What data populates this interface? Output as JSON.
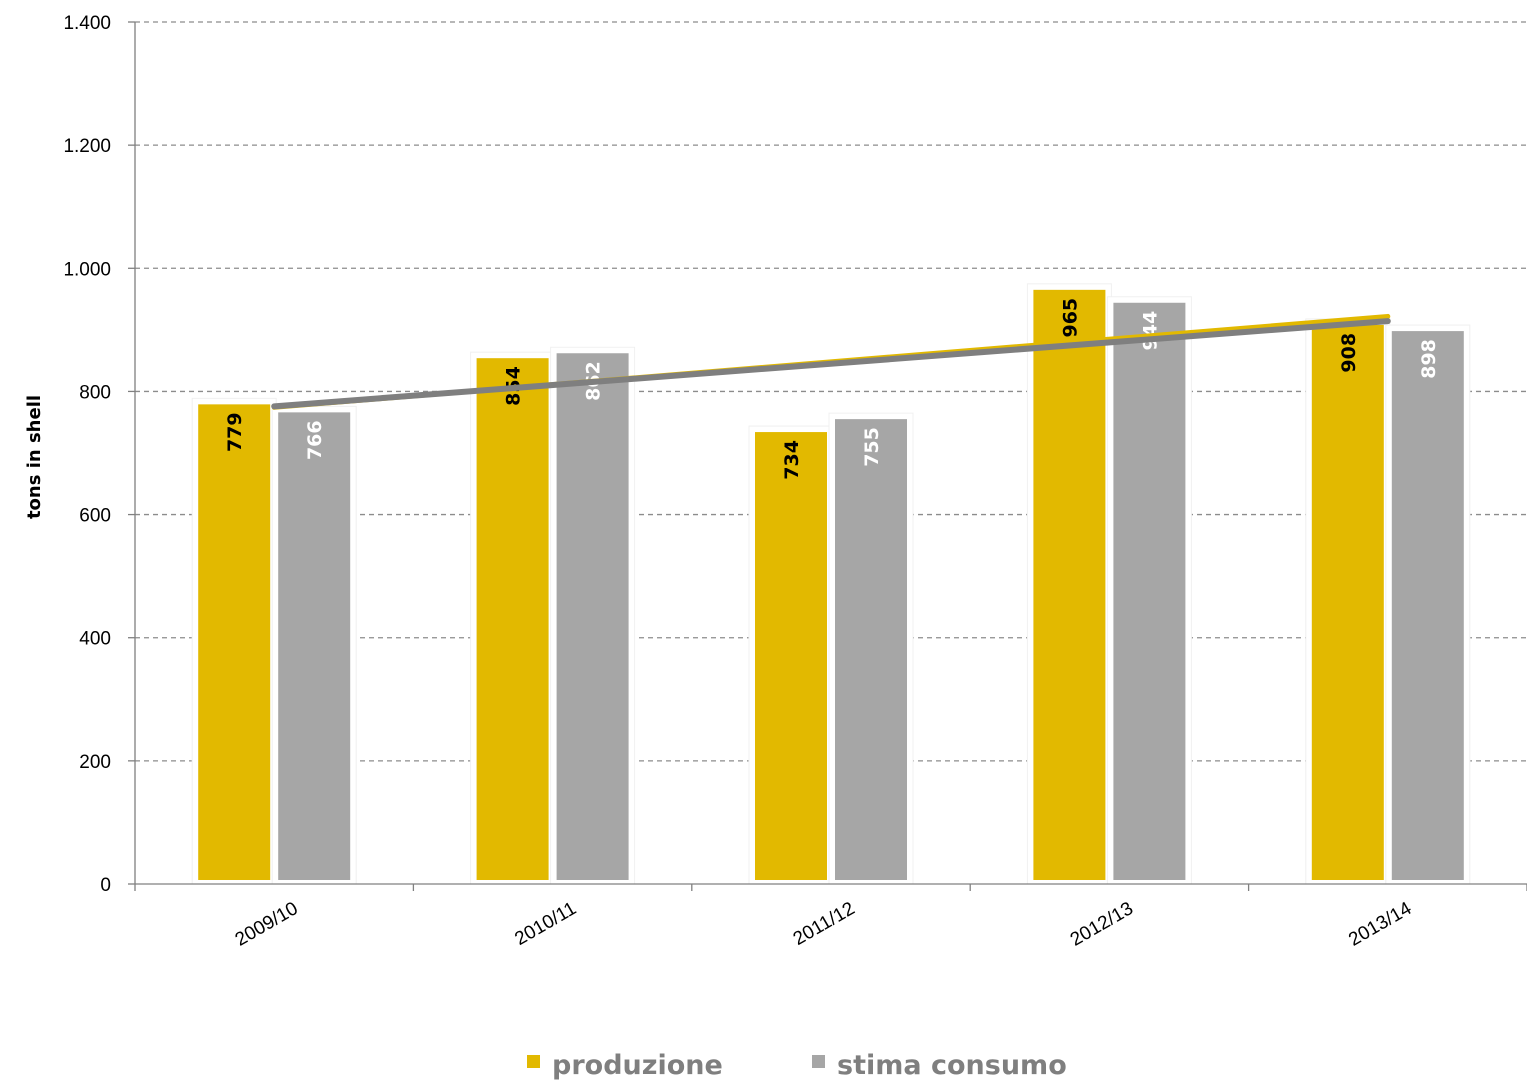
{
  "chart_data": {
    "type": "bar",
    "categories": [
      "2009/10",
      "2010/11",
      "2011/12",
      "2012/13",
      "2013/14"
    ],
    "series": [
      {
        "name": "produzione",
        "values": [
          779,
          854,
          734,
          965,
          908
        ],
        "color": "#e2b900",
        "label_color": "#000000"
      },
      {
        "name": "stima consumo",
        "values": [
          766,
          862,
          755,
          944,
          898
        ],
        "color": "#a6a6a6",
        "label_color": "#ffffff"
      }
    ],
    "data_labels": {
      "produzione": [
        "779",
        "854",
        "734",
        "965",
        "908"
      ],
      "stima consumo": [
        "766",
        "862",
        "755",
        "944",
        "898"
      ]
    },
    "trendlines": [
      {
        "series": "produzione",
        "color": "#e2b900"
      },
      {
        "series": "stima consumo",
        "color": "#7f7f7f"
      }
    ],
    "yticks": [
      0,
      200,
      400,
      600,
      800,
      1000,
      1200,
      1400
    ],
    "ytick_labels": [
      "0",
      "200",
      "400",
      "600",
      "800",
      "1.000",
      "1.200",
      "1.400"
    ],
    "ylim": [
      0,
      1400
    ],
    "ylabel": "tons in shell",
    "xlabel": "",
    "title": "",
    "grid": "dashed horizontal",
    "legend": "bottom-center"
  }
}
